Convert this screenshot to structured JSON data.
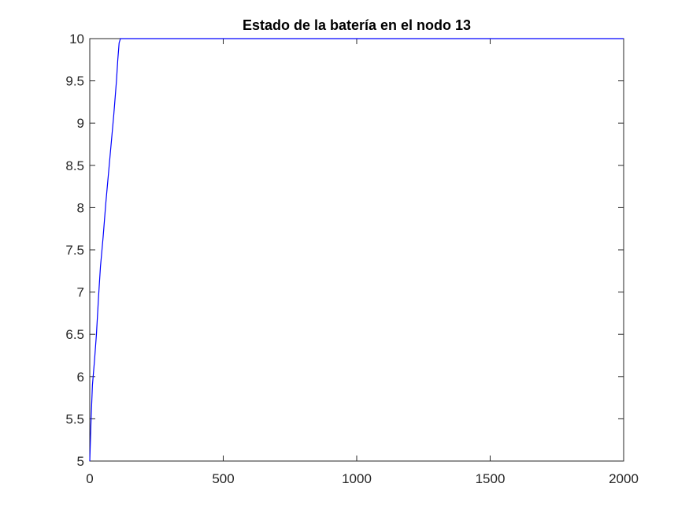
{
  "chart_data": {
    "type": "line",
    "title": "Estado de la batería en el nodo 13",
    "xlabel": "",
    "ylabel": "",
    "xlim": [
      0,
      2000
    ],
    "ylim": [
      5,
      10
    ],
    "xticks": [
      0,
      500,
      1000,
      1500,
      2000
    ],
    "yticks": [
      5,
      5.5,
      6,
      6.5,
      7,
      7.5,
      8,
      8.5,
      9,
      9.5,
      10
    ],
    "xtick_labels": [
      "0",
      "500",
      "1000",
      "1500",
      "2000"
    ],
    "ytick_labels": [
      "5",
      "5.5",
      "6",
      "6.5",
      "7",
      "7.5",
      "8",
      "8.5",
      "9",
      "9.5",
      "10"
    ],
    "grid": false,
    "series": [
      {
        "color": "#0000ff",
        "x": [
          0,
          5,
          10,
          18,
          25,
          33,
          40,
          50,
          60,
          70,
          80,
          90,
          100,
          105,
          110,
          115,
          2000
        ],
        "y": [
          5.0,
          5.5,
          5.9,
          6.2,
          6.5,
          6.95,
          7.3,
          7.65,
          8.05,
          8.4,
          8.75,
          9.1,
          9.5,
          9.75,
          9.95,
          10.0,
          10.0
        ]
      }
    ]
  }
}
